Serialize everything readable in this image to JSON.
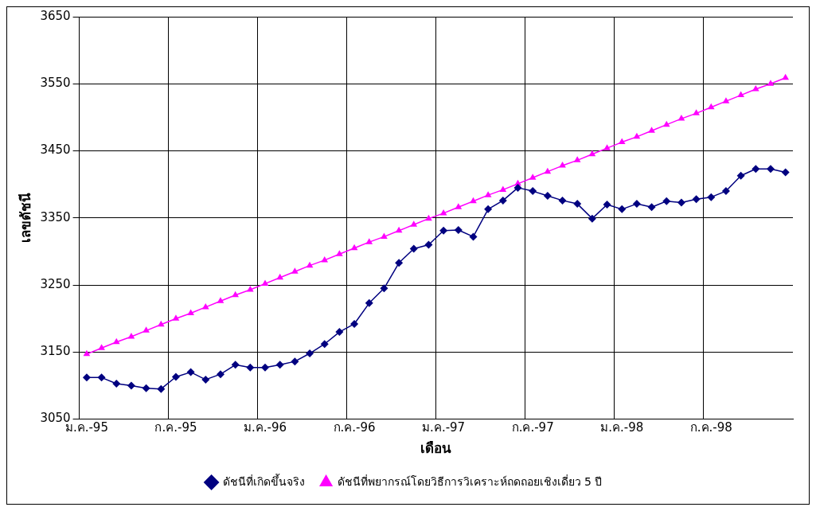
{
  "chart_data": {
    "type": "line",
    "xlabel": "เดือน",
    "ylabel": "เลขดัชนี",
    "categories": [
      "ม.ค.-95",
      null,
      null,
      null,
      null,
      null,
      "ก.ค.-95",
      null,
      null,
      null,
      null,
      null,
      "ม.ค.-96",
      null,
      null,
      null,
      null,
      null,
      "ก.ค.-96",
      null,
      null,
      null,
      null,
      null,
      "ม.ค.-97",
      null,
      null,
      null,
      null,
      null,
      "ก.ค.-97",
      null,
      null,
      null,
      null,
      null,
      "ม.ค.-98",
      null,
      null,
      null,
      null,
      null,
      "ก.ค.-98",
      null,
      null,
      null,
      null,
      null
    ],
    "series": [
      {
        "name": "ดัชนีที่เกิดขึ้นจริง",
        "color": "#000080",
        "marker": "diamond",
        "values": [
          3112,
          3112,
          3103,
          3100,
          3096,
          3095,
          3113,
          3120,
          3109,
          3117,
          3131,
          3127,
          3127,
          3131,
          3136,
          3148,
          3162,
          3180,
          3192,
          3223,
          3245,
          3283,
          3304,
          3310,
          3331,
          3332,
          3322,
          3363,
          3376,
          3395,
          3390,
          3383,
          3376,
          3371,
          3349,
          3370,
          3363,
          3371,
          3366,
          3375,
          3373,
          3378,
          3381,
          3390,
          3413,
          3423,
          3423,
          3418
        ]
      },
      {
        "name": "ดัชนีที่พยากรณ์โดยวิธีการวิเคราะห์ถดถอยเชิงเดี่ยว 5 ปี",
        "color": "#ff00ff",
        "marker": "triangle",
        "values": [
          3147,
          3156,
          3165,
          3173,
          3182,
          3191,
          3200,
          3208,
          3217,
          3226,
          3235,
          3243,
          3252,
          3261,
          3270,
          3279,
          3287,
          3296,
          3305,
          3314,
          3322,
          3331,
          3340,
          3349,
          3357,
          3366,
          3375,
          3384,
          3392,
          3401,
          3410,
          3419,
          3428,
          3436,
          3445,
          3454,
          3463,
          3471,
          3480,
          3489,
          3498,
          3506,
          3515,
          3524,
          3533,
          3542,
          3550,
          3559
        ]
      }
    ],
    "ylim": [
      3050,
      3650
    ],
    "yticks": [
      3050,
      3150,
      3250,
      3350,
      3450,
      3550,
      3650
    ],
    "grid": true,
    "legend": "bottom"
  }
}
